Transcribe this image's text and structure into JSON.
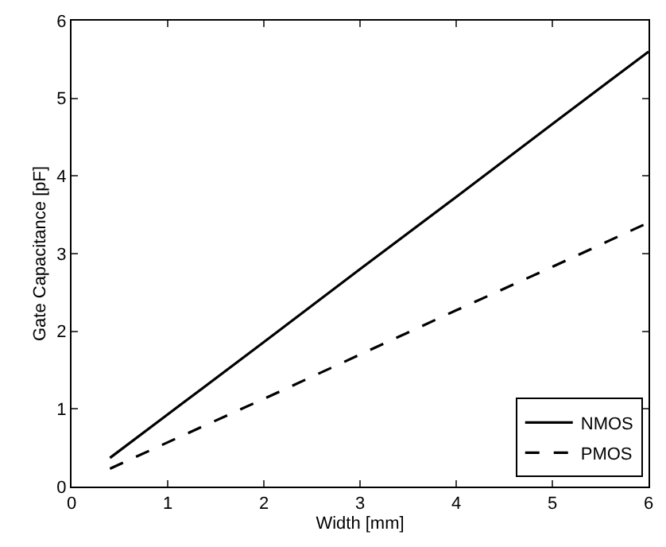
{
  "chart_data": {
    "type": "line",
    "xlabel": "Width [mm]",
    "ylabel": "Gate Capacitance [pF]",
    "x": [
      0.4,
      1,
      2,
      3,
      4,
      5,
      6
    ],
    "series": [
      {
        "name": "NMOS",
        "color": "#000000",
        "line_style": "solid",
        "values": [
          0.37,
          0.93,
          1.86,
          2.8,
          3.73,
          4.67,
          5.6
        ]
      },
      {
        "name": "PMOS",
        "color": "#000000",
        "line_style": "dashed",
        "values": [
          0.23,
          0.57,
          1.13,
          1.7,
          2.27,
          2.83,
          3.4
        ]
      }
    ],
    "xlim": [
      0,
      6
    ],
    "ylim": [
      0,
      6
    ],
    "xticks": [
      0,
      1,
      2,
      3,
      4,
      5,
      6
    ],
    "yticks": [
      0,
      1,
      2,
      3,
      4,
      5,
      6
    ],
    "legend": "bottom right",
    "marker": "none"
  }
}
